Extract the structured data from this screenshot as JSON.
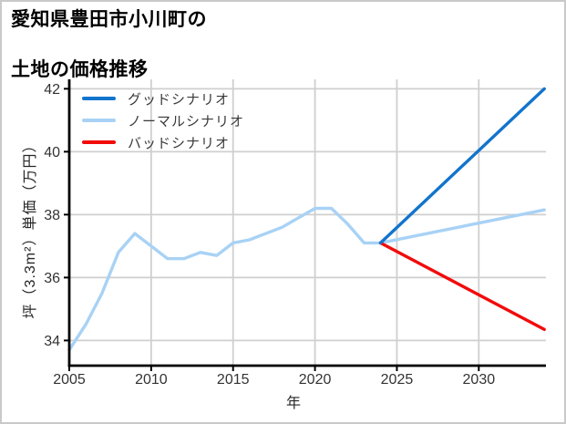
{
  "header": {
    "title_line1": "愛知県豊田市小川町の",
    "title_line2": "土地の価格推移"
  },
  "chart_data": {
    "type": "line",
    "title": "愛知県豊田市小川町の土地の価格推移",
    "xlabel": "年",
    "ylabel": "坪（3.3m²）単価（万円）",
    "xlim": [
      2005,
      2034.1
    ],
    "ylim": [
      33.2,
      42.3
    ],
    "x_ticks": [
      2005,
      2010,
      2015,
      2020,
      2025,
      2030
    ],
    "y_ticks": [
      34,
      36,
      38,
      40,
      42
    ],
    "grid": true,
    "legend_position": "upper-left",
    "colors": {
      "good": "#1274cc",
      "normal": "#a8d2f5",
      "bad": "#f20b0b",
      "grid": "#cfcfcf",
      "axis": "#000000",
      "tick_text": "#333333"
    },
    "series": [
      {
        "name": "グッドシナリオ",
        "color": "#1274cc",
        "points": [
          [
            2024,
            37.1
          ],
          [
            2034,
            42.0
          ]
        ]
      },
      {
        "name": "ノーマルシナリオ",
        "color": "#a8d2f5",
        "points": [
          [
            2005,
            33.7
          ],
          [
            2006,
            34.5
          ],
          [
            2007,
            35.5
          ],
          [
            2008,
            36.8
          ],
          [
            2009,
            37.4
          ],
          [
            2010,
            37.0
          ],
          [
            2011,
            36.6
          ],
          [
            2012,
            36.6
          ],
          [
            2013,
            36.8
          ],
          [
            2014,
            36.7
          ],
          [
            2015,
            37.1
          ],
          [
            2016,
            37.2
          ],
          [
            2017,
            37.4
          ],
          [
            2018,
            37.6
          ],
          [
            2019,
            37.9
          ],
          [
            2020,
            38.2
          ],
          [
            2021,
            38.2
          ],
          [
            2022,
            37.7
          ],
          [
            2023,
            37.1
          ],
          [
            2024,
            37.1
          ],
          [
            2034,
            38.15
          ]
        ]
      },
      {
        "name": "バッドシナリオ",
        "color": "#f20b0b",
        "points": [
          [
            2024,
            37.1
          ],
          [
            2034,
            34.35
          ]
        ]
      }
    ]
  }
}
